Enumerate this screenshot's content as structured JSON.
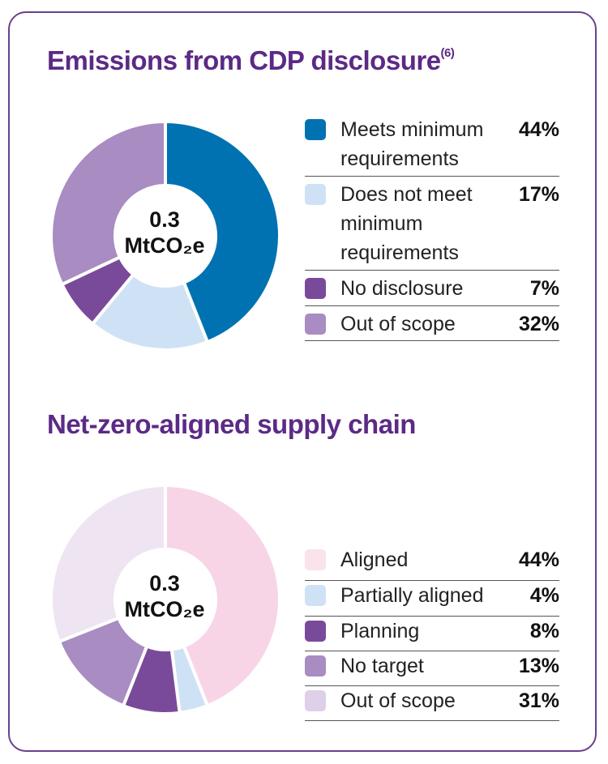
{
  "chart_data": [
    {
      "type": "pie",
      "title": "Emissions from CDP disclosure",
      "title_sup": "(6)",
      "center_value": "0.3",
      "center_unit": "MtCO₂e",
      "slices": [
        {
          "label": "Meets minimum requirements",
          "value": 44,
          "display": "44%",
          "color": "#0072b1"
        },
        {
          "label": "Does not meet minimum requirements",
          "value": 17,
          "display": "17%",
          "color": "#cfe2f5"
        },
        {
          "label": "No disclosure",
          "value": 7,
          "display": "7%",
          "color": "#7a4a9a"
        },
        {
          "label": "Out of scope",
          "value": 32,
          "display": "32%",
          "color": "#a88cc2"
        }
      ]
    },
    {
      "type": "pie",
      "title": "Net-zero-aligned supply chain",
      "center_value": "0.3",
      "center_unit": "MtCO₂e",
      "slices": [
        {
          "label": "Aligned",
          "value": 44,
          "display": "44%",
          "color": "#f7d5e6",
          "swatch": "#fae3ea"
        },
        {
          "label": "Partially aligned",
          "value": 4,
          "display": "4%",
          "color": "#cfe2f5"
        },
        {
          "label": "Planning",
          "value": 8,
          "display": "8%",
          "color": "#7a4a9a"
        },
        {
          "label": "No target",
          "value": 13,
          "display": "13%",
          "color": "#a88cc2"
        },
        {
          "label": "Out of scope",
          "value": 31,
          "display": "31%",
          "color": "#efe4f2",
          "swatch": "#ddd0e8"
        }
      ]
    }
  ]
}
